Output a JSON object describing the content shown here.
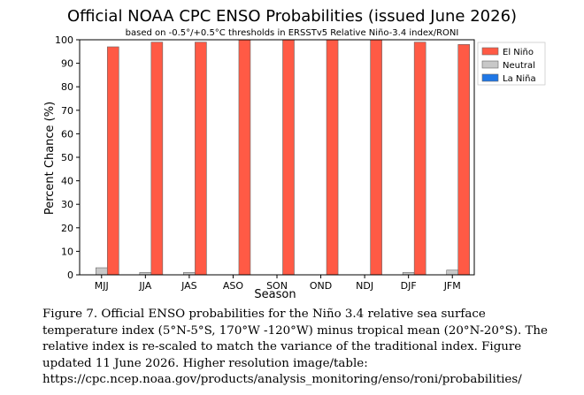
{
  "chart_data": {
    "type": "bar",
    "title": "Official NOAA CPC ENSO Probabilities (issued June 2026)",
    "subtitle": "based on -0.5°/+0.5°C thresholds in ERSSTv5 Relative Niño-3.4 index/RONI",
    "xlabel": "Season",
    "ylabel": "Percent Chance (%)",
    "ylim": [
      0,
      100
    ],
    "yticks": [
      0,
      10,
      20,
      30,
      40,
      50,
      60,
      70,
      80,
      90,
      100
    ],
    "grid": false,
    "legend_position": "top-right",
    "categories": [
      "MJJ",
      "JJA",
      "JAS",
      "ASO",
      "SON",
      "OND",
      "NDJ",
      "DJF",
      "JFM"
    ],
    "series": [
      {
        "name": "La Niña",
        "color": "#1f77e6",
        "values": [
          0,
          0,
          0,
          0,
          0,
          0,
          0,
          0,
          0
        ]
      },
      {
        "name": "Neutral",
        "color": "#c8c8c8",
        "values": [
          3,
          1,
          1,
          0,
          0,
          0,
          0,
          1,
          2
        ]
      },
      {
        "name": "El Niño",
        "color": "#ff5a45",
        "values": [
          97,
          99,
          99,
          100,
          100,
          100,
          100,
          99,
          98
        ]
      }
    ],
    "legend_order": [
      "El Niño",
      "Neutral",
      "La Niña"
    ]
  },
  "caption": "Figure 7. Official ENSO probabilities for the Niño 3.4 relative sea surface temperature index (5°N-5°S, 170°W -120°W) minus tropical mean (20°N-20°S). The relative index is re-scaled to match the variance of the traditional index. Figure updated 11 June 2026. Higher resolution image/table: https://cpc.ncep.noaa.gov/products/analysis_monitoring/enso/roni/probabilities/"
}
